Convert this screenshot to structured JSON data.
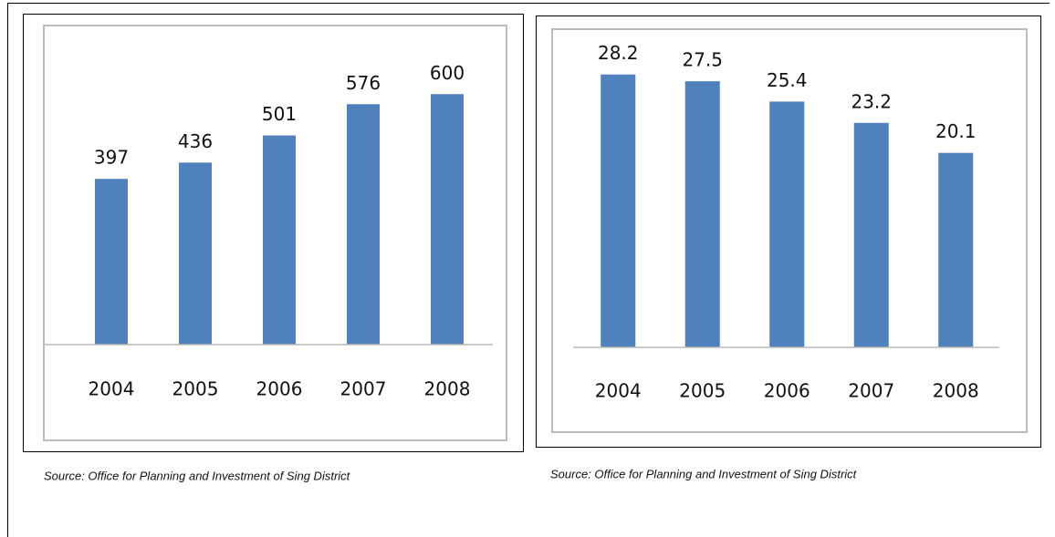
{
  "chart_data": [
    {
      "type": "bar",
      "categories": [
        "2004",
        "2005",
        "2006",
        "2007",
        "2008"
      ],
      "values": [
        397,
        436,
        501,
        576,
        600
      ],
      "color": "#4f81bd",
      "ylim": [
        0,
        760
      ],
      "source": "Source: Office for Planning and Investment of Sing District"
    },
    {
      "type": "bar",
      "categories": [
        "2004",
        "2005",
        "2006",
        "2007",
        "2008"
      ],
      "values": [
        28.2,
        27.5,
        25.4,
        23.2,
        20.1
      ],
      "color": "#4f81bd",
      "ylim": [
        0,
        32.6
      ],
      "source": "Source: Office for Planning and Investment of Sing District"
    }
  ]
}
